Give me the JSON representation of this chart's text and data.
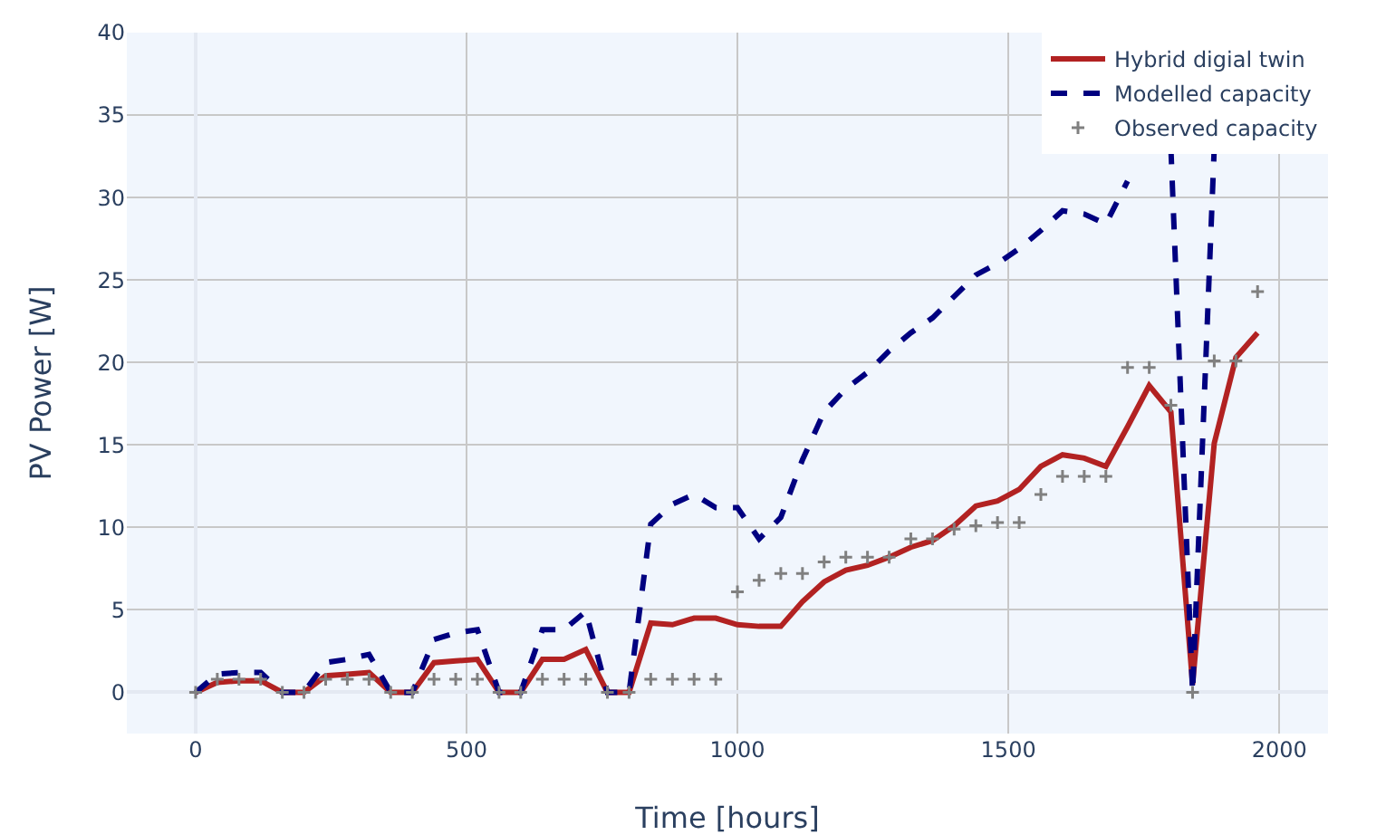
{
  "chart_data": {
    "type": "line",
    "xlabel": "Time [hours]",
    "ylabel": "PV Power [W]",
    "x": [
      0,
      40,
      80,
      120,
      160,
      200,
      240,
      280,
      320,
      360,
      400,
      440,
      480,
      520,
      560,
      600,
      640,
      680,
      720,
      760,
      800,
      840,
      880,
      920,
      960,
      1000,
      1040,
      1080,
      1120,
      1160,
      1200,
      1240,
      1280,
      1320,
      1360,
      1400,
      1440,
      1480,
      1520,
      1560,
      1600,
      1640,
      1680,
      1720,
      1760,
      1800,
      1840,
      1880,
      1920,
      1960
    ],
    "series": [
      {
        "name": "Hybrid digial twin",
        "color": "#b22222",
        "line_style": "solid",
        "marker": "none",
        "values": [
          0,
          0.6,
          0.7,
          0.7,
          0,
          0,
          1.0,
          1.1,
          1.2,
          0,
          0,
          1.8,
          1.9,
          2.0,
          0,
          0,
          2.0,
          2.0,
          2.6,
          0,
          0,
          4.2,
          4.1,
          4.5,
          4.5,
          4.1,
          4.0,
          4.0,
          5.5,
          6.7,
          7.4,
          7.7,
          8.2,
          8.8,
          9.2,
          10.1,
          11.3,
          11.6,
          12.3,
          13.7,
          14.4,
          14.2,
          13.7,
          16.1,
          18.6,
          17.0,
          0.5,
          15.1,
          20.3,
          21.8
        ]
      },
      {
        "name": "Modelled capacity",
        "color": "#000080",
        "line_style": "dashed",
        "marker": "none",
        "values": [
          0,
          1.1,
          1.2,
          1.2,
          0,
          0,
          1.8,
          2.0,
          2.3,
          0,
          0,
          3.2,
          3.6,
          3.8,
          0,
          0,
          3.8,
          3.8,
          4.9,
          0,
          0,
          10.2,
          11.4,
          12.0,
          11.2,
          11.2,
          9.3,
          10.6,
          14.1,
          17.0,
          18.4,
          19.4,
          20.7,
          21.8,
          22.7,
          24.0,
          25.3,
          26.0,
          26.9,
          28.0,
          29.2,
          29.0,
          28.4,
          31,
          null,
          33,
          0,
          33,
          null,
          null
        ]
      },
      {
        "name": "Observed capacity",
        "color": "#808080",
        "type": "scatter",
        "marker": "cross",
        "values": [
          0,
          0.8,
          0.8,
          0.8,
          0,
          0,
          0.8,
          0.8,
          0.8,
          0,
          0,
          0.8,
          0.8,
          0.8,
          0,
          0,
          0.8,
          0.8,
          0.8,
          0,
          0,
          0.8,
          0.8,
          0.8,
          0.8,
          6.1,
          6.8,
          7.2,
          7.2,
          7.9,
          8.2,
          8.2,
          8.2,
          9.3,
          9.3,
          9.9,
          10.1,
          10.3,
          10.3,
          12.0,
          13.1,
          13.1,
          13.1,
          19.7,
          19.7,
          17.4,
          0,
          20.1,
          20.1,
          24.3
        ]
      }
    ],
    "xlim": [
      -127,
      2090
    ],
    "xticks": [
      0,
      500,
      1000,
      1500,
      2000
    ],
    "ylim": [
      -2.5,
      40
    ],
    "yticks": [
      0,
      5,
      10,
      15,
      20,
      25,
      30,
      35,
      40
    ],
    "grid": true,
    "legend": "top right"
  }
}
